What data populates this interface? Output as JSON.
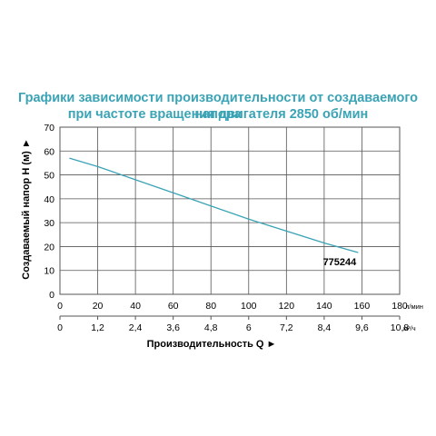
{
  "title_line1": "Графики зависимости производительности от создаваемого напора",
  "title_line2": "при частоте вращения двигателя 2850 об/мин",
  "colors": {
    "title": "#3aa3b5",
    "curve": "#3aa3b5",
    "grid": "#555555",
    "text": "#000000"
  },
  "chart_data": {
    "type": "line",
    "ylabel": "Создаваемый напор H (м)",
    "ylabel_arrow": "►",
    "xlabel": "Производительность Q",
    "xlabel_arrow": "►",
    "x_unit_lpm": "л/мин",
    "x_unit_m3h": "м³/ч",
    "xlim": [
      0,
      180
    ],
    "ylim": [
      0,
      70
    ],
    "x_ticks_lpm": [
      "0",
      "20",
      "40",
      "60",
      "80",
      "100",
      "120",
      "140",
      "160",
      "180"
    ],
    "x_ticks_m3h": [
      "0",
      "1,2",
      "2,4",
      "3,6",
      "4,8",
      "6",
      "7,2",
      "8,4",
      "9,6",
      "10,8"
    ],
    "y_ticks": [
      "0",
      "10",
      "20",
      "30",
      "40",
      "50",
      "60",
      "70"
    ],
    "grid": true,
    "series": [
      {
        "name": "775244",
        "x": [
          5,
          20,
          40,
          60,
          80,
          100,
          120,
          140,
          158
        ],
        "y": [
          57,
          53.5,
          48,
          42.5,
          37,
          31.5,
          26.5,
          21.5,
          17.5
        ]
      }
    ]
  }
}
